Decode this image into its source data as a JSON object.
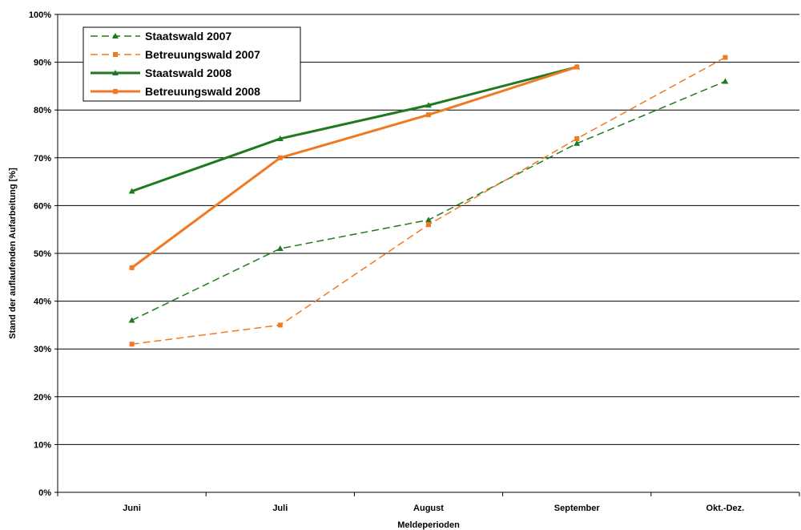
{
  "chart_data": {
    "type": "line",
    "categories": [
      "Juni",
      "Juli",
      "August",
      "September",
      "Okt.-Dez."
    ],
    "ylabel": "Stand der auflaufenden Aufarbeitung [%]",
    "xlabel": "Meldeperioden",
    "ylim": [
      0,
      100
    ],
    "yticks": [
      "0%",
      "10%",
      "20%",
      "30%",
      "40%",
      "50%",
      "60%",
      "70%",
      "80%",
      "90%",
      "100%"
    ],
    "grid": true,
    "legend_position": "top-left",
    "series": [
      {
        "name": "Staatswald 2007",
        "values": [
          36,
          51,
          57,
          73,
          86
        ],
        "color": "#1f7a1f",
        "dashed": true,
        "marker": "triangle"
      },
      {
        "name": "Betreuungswald 2007",
        "values": [
          31,
          35,
          56,
          74,
          91
        ],
        "color": "#f07a23",
        "dashed": true,
        "marker": "square"
      },
      {
        "name": "Staatswald 2008",
        "values": [
          63,
          74,
          81,
          89,
          null
        ],
        "color": "#1f7a1f",
        "dashed": false,
        "marker": "triangle"
      },
      {
        "name": "Betreuungswald 2008",
        "values": [
          47,
          70,
          79,
          89,
          null
        ],
        "color": "#f07a23",
        "dashed": false,
        "marker": "square"
      }
    ]
  }
}
